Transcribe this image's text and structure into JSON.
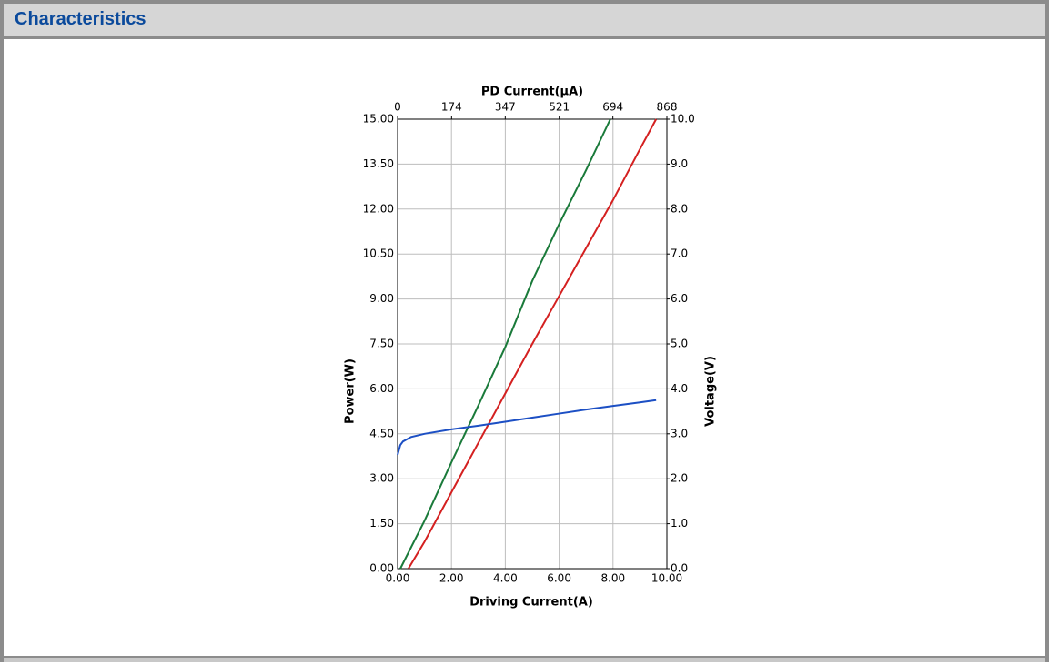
{
  "header": {
    "title": "Characteristics"
  },
  "chart_data": {
    "type": "line",
    "title": "PD Current(μA)",
    "x_label": "Driving Current(A)",
    "y_label": "Power(W)",
    "y2_label": "Voltage(V)",
    "xlim": [
      0,
      10
    ],
    "xticks": [
      {
        "value": 0,
        "label": "0.00"
      },
      {
        "value": 2,
        "label": "2.00"
      },
      {
        "value": 4,
        "label": "4.00"
      },
      {
        "value": 6,
        "label": "6.00"
      },
      {
        "value": 8,
        "label": "8.00"
      },
      {
        "value": 10,
        "label": "10.00"
      }
    ],
    "x2lim": [
      0,
      868
    ],
    "x2ticks": [
      0,
      174,
      347,
      521,
      694,
      868
    ],
    "ylim": [
      0,
      15
    ],
    "yticks": [
      {
        "value": 0,
        "label": "0.00"
      },
      {
        "value": 1.5,
        "label": "1.50"
      },
      {
        "value": 3,
        "label": "3.00"
      },
      {
        "value": 4.5,
        "label": "4.50"
      },
      {
        "value": 6,
        "label": "6.00"
      },
      {
        "value": 7.5,
        "label": "7.50"
      },
      {
        "value": 9,
        "label": "9.00"
      },
      {
        "value": 10.5,
        "label": "10.50"
      },
      {
        "value": 12,
        "label": "12.00"
      },
      {
        "value": 13.5,
        "label": "13.50"
      },
      {
        "value": 15,
        "label": "15.00"
      }
    ],
    "y2lim": [
      0,
      10
    ],
    "y2ticks": [
      {
        "value": 0,
        "label": "0.0"
      },
      {
        "value": 1,
        "label": "1.0"
      },
      {
        "value": 2,
        "label": "2.0"
      },
      {
        "value": 3,
        "label": "3.0"
      },
      {
        "value": 4,
        "label": "4.0"
      },
      {
        "value": 5,
        "label": "5.0"
      },
      {
        "value": 6,
        "label": "6.0"
      },
      {
        "value": 7,
        "label": "7.0"
      },
      {
        "value": 8,
        "label": "8.0"
      },
      {
        "value": 9,
        "label": "9.0"
      },
      {
        "value": 10,
        "label": "10.0"
      }
    ],
    "grid": true,
    "series": [
      {
        "color": "#1a7a3a",
        "x": [
          0.1,
          1,
          2,
          3,
          4,
          5,
          6,
          7,
          7.9
        ],
        "values": [
          0,
          1.6,
          3.55,
          5.45,
          7.4,
          9.6,
          11.5,
          13.3,
          15
        ]
      },
      {
        "color": "#d42020",
        "x": [
          0.4,
          1,
          2,
          3,
          4,
          5,
          6,
          7,
          8,
          9,
          9.6
        ],
        "values": [
          0,
          0.9,
          2.55,
          4.2,
          5.85,
          7.5,
          9.1,
          10.7,
          12.3,
          14.0,
          15
        ]
      },
      {
        "color": "#1c4fc4",
        "axis": "y2",
        "x": [
          0,
          0.1,
          0.2,
          0.5,
          1,
          2,
          3,
          4,
          5,
          6,
          7,
          8,
          9,
          9.6
        ],
        "values": [
          2.53,
          2.75,
          2.83,
          2.93,
          3.0,
          3.1,
          3.18,
          3.27,
          3.36,
          3.45,
          3.54,
          3.62,
          3.7,
          3.75
        ]
      }
    ]
  }
}
